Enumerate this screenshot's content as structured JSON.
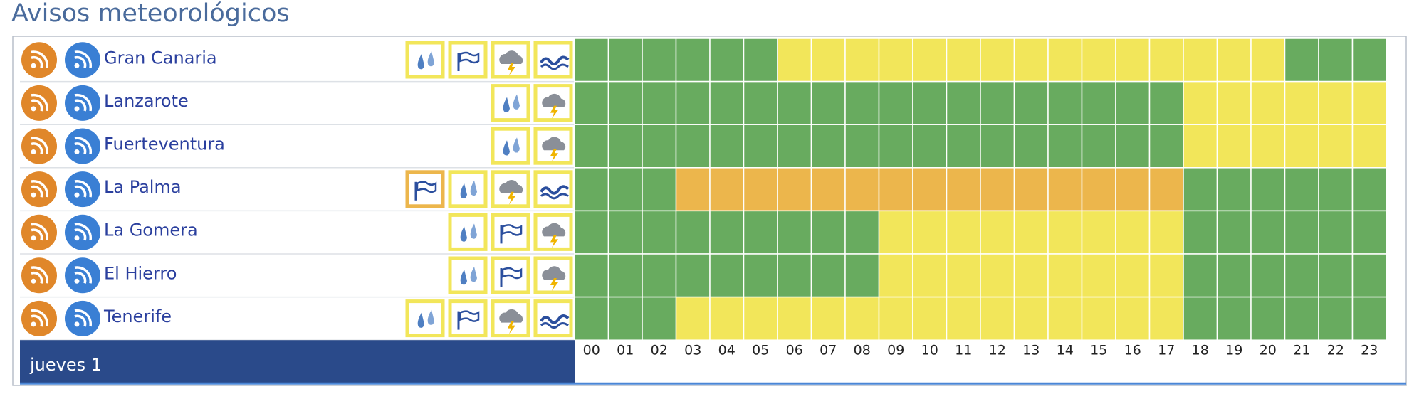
{
  "header": {
    "title": "Avisos meteorológicos"
  },
  "levels": {
    "green": "#68ab5f",
    "yellow": "#f2e65a",
    "orange": "#ecb64c"
  },
  "rows": [
    {
      "name": "Gran Canaria",
      "icons": [
        {
          "type": "rain",
          "level": "yellow"
        },
        {
          "type": "wind",
          "level": "yellow"
        },
        {
          "type": "storm",
          "level": "yellow"
        },
        {
          "type": "coast",
          "level": "yellow"
        }
      ],
      "hours": [
        "green",
        "green",
        "green",
        "green",
        "green",
        "green",
        "yellow",
        "yellow",
        "yellow",
        "yellow",
        "yellow",
        "yellow",
        "yellow",
        "yellow",
        "yellow",
        "yellow",
        "yellow",
        "yellow",
        "yellow",
        "yellow",
        "yellow",
        "green",
        "green",
        "green"
      ]
    },
    {
      "name": "Lanzarote",
      "icons": [
        {
          "type": "rain",
          "level": "yellow"
        },
        {
          "type": "storm",
          "level": "yellow"
        }
      ],
      "hours": [
        "green",
        "green",
        "green",
        "green",
        "green",
        "green",
        "green",
        "green",
        "green",
        "green",
        "green",
        "green",
        "green",
        "green",
        "green",
        "green",
        "green",
        "green",
        "yellow",
        "yellow",
        "yellow",
        "yellow",
        "yellow",
        "yellow"
      ]
    },
    {
      "name": "Fuerteventura",
      "icons": [
        {
          "type": "rain",
          "level": "yellow"
        },
        {
          "type": "storm",
          "level": "yellow"
        }
      ],
      "hours": [
        "green",
        "green",
        "green",
        "green",
        "green",
        "green",
        "green",
        "green",
        "green",
        "green",
        "green",
        "green",
        "green",
        "green",
        "green",
        "green",
        "green",
        "green",
        "yellow",
        "yellow",
        "yellow",
        "yellow",
        "yellow",
        "yellow"
      ]
    },
    {
      "name": "La Palma",
      "icons": [
        {
          "type": "wind",
          "level": "orange"
        },
        {
          "type": "rain",
          "level": "yellow"
        },
        {
          "type": "storm",
          "level": "yellow"
        },
        {
          "type": "coast",
          "level": "yellow"
        }
      ],
      "hours": [
        "green",
        "green",
        "green",
        "orange",
        "orange",
        "orange",
        "orange",
        "orange",
        "orange",
        "orange",
        "orange",
        "orange",
        "orange",
        "orange",
        "orange",
        "orange",
        "orange",
        "orange",
        "green",
        "green",
        "green",
        "green",
        "green",
        "green"
      ]
    },
    {
      "name": "La Gomera",
      "icons": [
        {
          "type": "rain",
          "level": "yellow"
        },
        {
          "type": "wind",
          "level": "yellow"
        },
        {
          "type": "storm",
          "level": "yellow"
        }
      ],
      "hours": [
        "green",
        "green",
        "green",
        "green",
        "green",
        "green",
        "green",
        "green",
        "green",
        "yellow",
        "yellow",
        "yellow",
        "yellow",
        "yellow",
        "yellow",
        "yellow",
        "yellow",
        "yellow",
        "green",
        "green",
        "green",
        "green",
        "green",
        "green"
      ]
    },
    {
      "name": "El Hierro",
      "icons": [
        {
          "type": "rain",
          "level": "yellow"
        },
        {
          "type": "wind",
          "level": "yellow"
        },
        {
          "type": "storm",
          "level": "yellow"
        }
      ],
      "hours": [
        "green",
        "green",
        "green",
        "green",
        "green",
        "green",
        "green",
        "green",
        "green",
        "yellow",
        "yellow",
        "yellow",
        "yellow",
        "yellow",
        "yellow",
        "yellow",
        "yellow",
        "yellow",
        "green",
        "green",
        "green",
        "green",
        "green",
        "green"
      ]
    },
    {
      "name": "Tenerife",
      "icons": [
        {
          "type": "rain",
          "level": "yellow"
        },
        {
          "type": "wind",
          "level": "yellow"
        },
        {
          "type": "storm",
          "level": "yellow"
        },
        {
          "type": "coast",
          "level": "yellow"
        }
      ],
      "hours": [
        "green",
        "green",
        "green",
        "yellow",
        "yellow",
        "yellow",
        "yellow",
        "yellow",
        "yellow",
        "yellow",
        "yellow",
        "yellow",
        "yellow",
        "yellow",
        "yellow",
        "yellow",
        "yellow",
        "yellow",
        "green",
        "green",
        "green",
        "green",
        "green",
        "green"
      ]
    }
  ],
  "footer": {
    "day": "jueves 1",
    "hours": [
      "00",
      "01",
      "02",
      "03",
      "04",
      "05",
      "06",
      "07",
      "08",
      "09",
      "10",
      "11",
      "12",
      "13",
      "14",
      "15",
      "16",
      "17",
      "18",
      "19",
      "20",
      "21",
      "22",
      "23"
    ]
  }
}
